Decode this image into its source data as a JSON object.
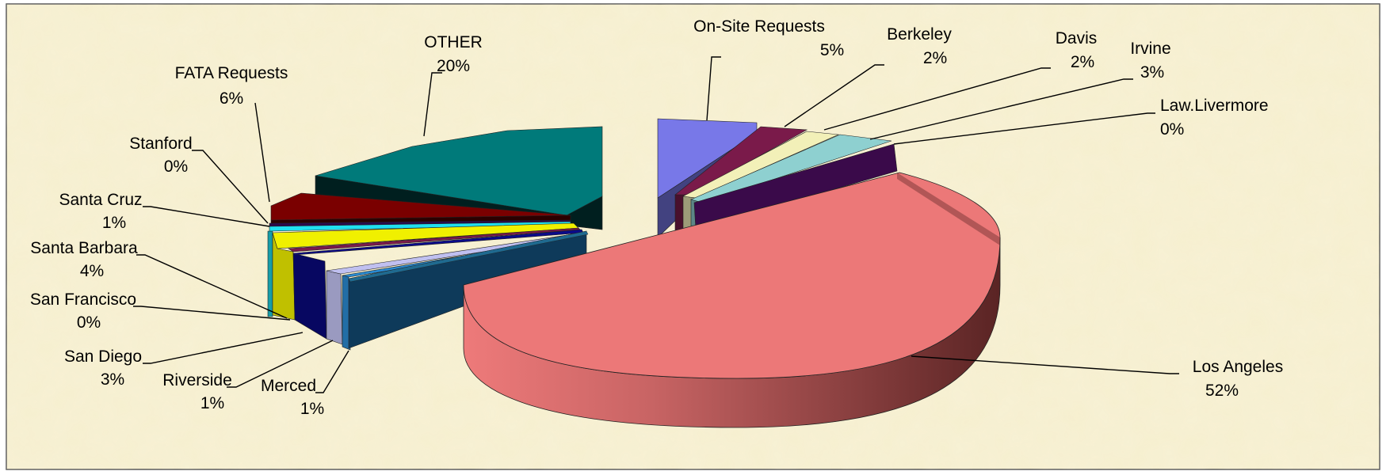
{
  "chart_data": {
    "type": "pie",
    "style": "3d-exploded",
    "title": "",
    "legend": "none",
    "slices": [
      {
        "label": "On-Site Requests",
        "value_label": "5%",
        "value": 5,
        "color": "#7878e8"
      },
      {
        "label": "Berkeley",
        "value_label": "2%",
        "value": 2,
        "color": "#7a1a4a"
      },
      {
        "label": "Davis",
        "value_label": "2%",
        "value": 2,
        "color": "#f2f0b8"
      },
      {
        "label": "Irvine",
        "value_label": "3%",
        "value": 3,
        "color": "#8ed0d0"
      },
      {
        "label": "Law.Livermore",
        "value_label": "0%",
        "value": 0,
        "color": "#3a0a4a"
      },
      {
        "label": "Los Angeles",
        "value_label": "52%",
        "value": 52,
        "color": "#ec7878"
      },
      {
        "label": "Merced",
        "value_label": "1%",
        "value": 1,
        "color": "#2a8ad0"
      },
      {
        "label": "Riverside",
        "value_label": "1%",
        "value": 1,
        "color": "#c0c0f0"
      },
      {
        "label": "San Diego",
        "value_label": "3%",
        "value": 3,
        "color": "#0a0a8a"
      },
      {
        "label": "San Francisco",
        "value_label": "0%",
        "value": 0,
        "color": "#7a1a4a"
      },
      {
        "label": "Santa Barbara",
        "value_label": "4%",
        "value": 4,
        "color": "#f0f000"
      },
      {
        "label": "Santa Cruz",
        "value_label": "1%",
        "value": 1,
        "color": "#20e0f0"
      },
      {
        "label": "Stanford",
        "value_label": "0%",
        "value": 0,
        "color": "#2a0a4a"
      },
      {
        "label": "FATA Requests",
        "value_label": "6%",
        "value": 6,
        "color": "#7a0000"
      },
      {
        "label": "OTHER",
        "value_label": "20%",
        "value": 20,
        "color": "#007a7a"
      }
    ]
  },
  "background_color": "#f6efcf"
}
